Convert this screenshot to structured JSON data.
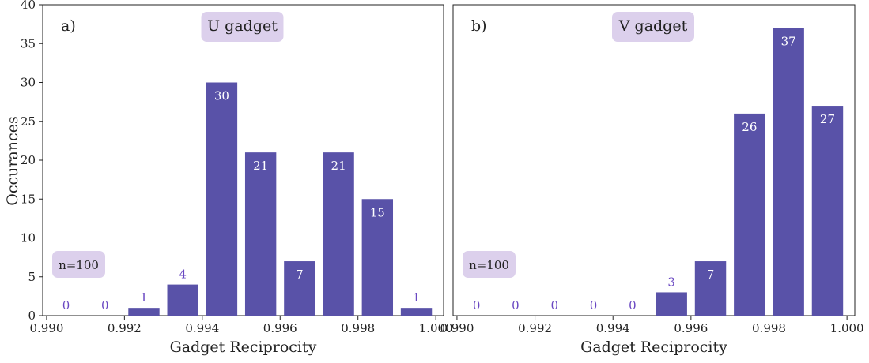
{
  "figure": {
    "y_axis_title": "Occurances",
    "x_axis_title": "Gadget Reciprocity",
    "bar_color": "#5952a8",
    "badge_color": "#dcd0ec",
    "inside_label_color": "#ffffff",
    "outside_label_color": "#6a48c2"
  },
  "chart_data": [
    {
      "type": "bar",
      "panel_label": "a)",
      "title": "U gadget",
      "annotation": "n=100",
      "xlabel": "Gadget Reciprocity",
      "ylabel": "Occurances",
      "xlim": [
        0.9899,
        1.0002
      ],
      "ylim": [
        0,
        40
      ],
      "xticks": [
        "0.990",
        "0.992",
        "0.994",
        "0.996",
        "0.998",
        "1.000"
      ],
      "yticks": [
        "0",
        "5",
        "10",
        "15",
        "20",
        "25",
        "30",
        "35",
        "40"
      ],
      "grid": false,
      "bin_centers": [
        0.9905,
        0.9915,
        0.9925,
        0.9935,
        0.9945,
        0.9955,
        0.9965,
        0.9975,
        0.9985,
        0.9995
      ],
      "bar_width": 0.0008,
      "values": [
        0,
        0,
        1,
        4,
        30,
        21,
        7,
        21,
        15,
        1
      ]
    },
    {
      "type": "bar",
      "panel_label": "b)",
      "title": "V gadget",
      "annotation": "n=100",
      "xlabel": "Gadget Reciprocity",
      "ylabel": "",
      "xlim": [
        0.9899,
        1.0002
      ],
      "ylim": [
        0,
        40
      ],
      "xticks": [
        "0.990",
        "0.992",
        "0.994",
        "0.996",
        "0.998",
        "1.000"
      ],
      "yticks": [],
      "grid": false,
      "bin_centers": [
        0.9905,
        0.9915,
        0.9925,
        0.9935,
        0.9945,
        0.9955,
        0.9965,
        0.9975,
        0.9985,
        0.9995
      ],
      "bar_width": 0.0008,
      "values": [
        0,
        0,
        0,
        0,
        0,
        3,
        7,
        26,
        37,
        27
      ]
    }
  ]
}
